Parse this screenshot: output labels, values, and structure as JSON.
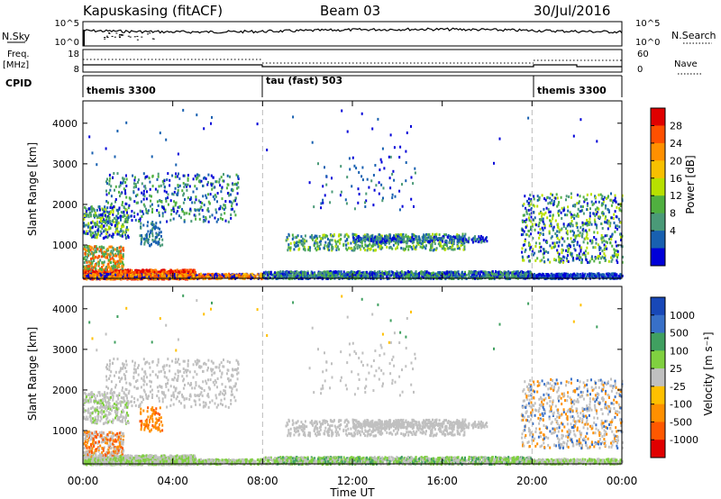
{
  "header": {
    "station": "Kapuskasing (fitACF)",
    "beam": "Beam 03",
    "date": "30/Jul/2016"
  },
  "top_panels": {
    "nsky_label": "N.Sky",
    "nsearch_label": "N.Search",
    "freq_label_1": "Freq.",
    "freq_label_2": "[MHz]",
    "nave_label": "Nave",
    "cpid_label": "CPID",
    "nsky_ticks": [
      "10^5",
      "10^0"
    ],
    "nsearch_ticks": [
      "10^5",
      "10^0"
    ],
    "freq_ticks": [
      "18",
      "8"
    ],
    "nave_ticks": [
      "60",
      "0"
    ],
    "cpid_segments": [
      {
        "label": "themis 3300",
        "start_hour": 0,
        "end_hour": 8
      },
      {
        "label": "tau (fast) 503",
        "start_hour": 8,
        "end_hour": 20
      },
      {
        "label": "themis 3300",
        "start_hour": 20,
        "end_hour": 24
      }
    ]
  },
  "chart_data": [
    {
      "type": "heatmap",
      "name": "power",
      "ylabel": "Slant Range [km]",
      "yticks": [
        "4000",
        "3000",
        "2000",
        "1000"
      ],
      "ytick_values": [
        4000,
        3000,
        2000,
        1000
      ],
      "ylim": [
        180,
        4550
      ],
      "xlim": [
        0,
        24
      ],
      "colorbar": {
        "label": "Power [dB]",
        "ticks": [
          "28",
          "24",
          "20",
          "16",
          "12",
          "8",
          "4"
        ],
        "colors": [
          "#e00000",
          "#ff5000",
          "#ff9000",
          "#f8c000",
          "#b8e000",
          "#50b040",
          "#4a9a78",
          "#1860b0",
          "#0000d8"
        ]
      }
    },
    {
      "type": "heatmap",
      "name": "velocity",
      "ylabel": "Slant Range [km]",
      "yticks": [
        "4000",
        "3000",
        "2000",
        "1000"
      ],
      "ytick_values": [
        4000,
        3000,
        2000,
        1000
      ],
      "ylim": [
        180,
        4550
      ],
      "xlim": [
        0,
        24
      ],
      "xlabel": "Time UT",
      "xticks": [
        "00:00",
        "04:00",
        "08:00",
        "12:00",
        "16:00",
        "20:00",
        "00:00"
      ],
      "xtick_values": [
        0,
        4,
        8,
        12,
        16,
        20,
        24
      ],
      "colorbar": {
        "label": "Velocity [m s⁻¹]",
        "ticks": [
          "1000",
          "500",
          "100",
          "25",
          "-25",
          "-100",
          "-500",
          "-1000"
        ],
        "colors": [
          "#1848b8",
          "#3870c8",
          "#40a060",
          "#80d040",
          "#c0c0c0",
          "#ffc000",
          "#ff9000",
          "#ff5800",
          "#e00000"
        ]
      }
    }
  ]
}
